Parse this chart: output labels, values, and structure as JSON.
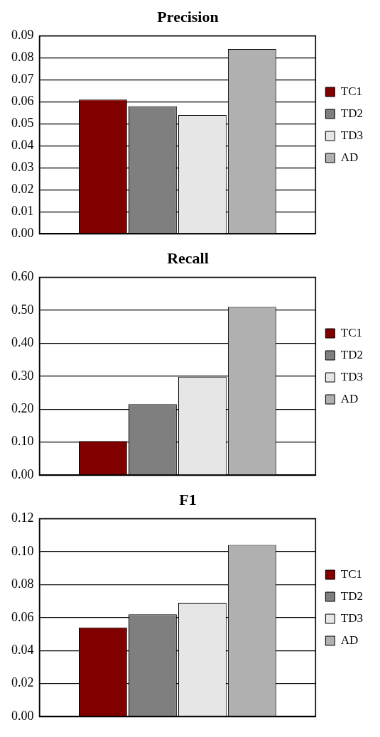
{
  "chart_data": [
    {
      "type": "bar",
      "title": "Precision",
      "categories": [
        null
      ],
      "series": [
        {
          "name": "TC1",
          "color": "#800000",
          "values": [
            0.061
          ]
        },
        {
          "name": "TD2",
          "color": "#7f7f7f",
          "values": [
            0.058
          ]
        },
        {
          "name": "TD3",
          "color": "#e6e6e6",
          "values": [
            0.054
          ]
        },
        {
          "name": "AD",
          "color": "#b0b0b0",
          "values": [
            0.084
          ]
        }
      ],
      "ylim": [
        0,
        0.09
      ],
      "yticks": [
        {
          "value": 0,
          "label": "0.00"
        },
        0.01,
        0.02,
        0.03,
        0.04,
        0.05,
        0.06,
        0.07,
        0.08,
        0.09
      ],
      "grid": "y",
      "legend": "right",
      "tick_labels": "y"
    },
    {
      "type": "bar",
      "title": "Recall",
      "categories": [
        null
      ],
      "series": [
        {
          "name": "TC1",
          "color": "#800000",
          "values": [
            0.103
          ]
        },
        {
          "name": "TD2",
          "color": "#7f7f7f",
          "values": [
            0.215
          ]
        },
        {
          "name": "TD3",
          "color": "#e6e6e6",
          "values": [
            0.298
          ]
        },
        {
          "name": "AD",
          "color": "#b0b0b0",
          "values": [
            0.51
          ]
        }
      ],
      "ylim": [
        0,
        0.6
      ],
      "yticks": [
        {
          "value": 0,
          "label": "0.00"
        },
        {
          "value": 0.1,
          "label": "0.10"
        },
        {
          "value": 0.2,
          "label": "0.20"
        },
        {
          "value": 0.3,
          "label": "0.30"
        },
        {
          "value": 0.4,
          "label": "0.40"
        },
        {
          "value": 0.5,
          "label": "0.50"
        },
        {
          "value": 0.6,
          "label": "0.60"
        }
      ],
      "grid": "y",
      "legend": "right",
      "tick_labels": "y"
    },
    {
      "type": "bar",
      "title": "F1",
      "categories": [
        null
      ],
      "series": [
        {
          "name": "TC1",
          "color": "#800000",
          "values": [
            0.054
          ]
        },
        {
          "name": "TD2",
          "color": "#7f7f7f",
          "values": [
            0.062
          ]
        },
        {
          "name": "TD3",
          "color": "#e6e6e6",
          "values": [
            0.069
          ]
        },
        {
          "name": "AD",
          "color": "#b0b0b0",
          "values": [
            0.104
          ]
        }
      ],
      "ylim": [
        0,
        0.12
      ],
      "yticks": [
        {
          "value": 0,
          "label": "0.00"
        },
        0.02,
        0.04,
        0.06,
        0.08,
        {
          "value": 0.1,
          "label": "0.10"
        },
        0.12
      ],
      "grid": "y",
      "legend": "right",
      "tick_labels": "y"
    }
  ]
}
